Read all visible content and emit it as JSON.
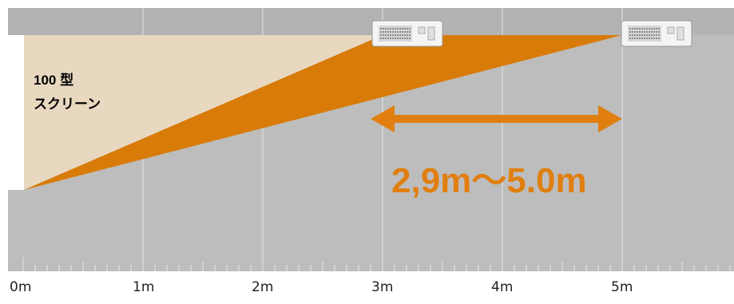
{
  "screen": {
    "size_line": "100 型",
    "word_line": "スクリーン"
  },
  "distance_range": "2,9m〜5.0m",
  "axis": {
    "ticks": [
      "0m",
      "1m",
      "2m",
      "3m",
      "4m",
      "5m"
    ]
  },
  "projectors": [
    "near-projector",
    "far-projector"
  ],
  "colors": {
    "background": "#bdbdbd",
    "ceiling_band": "#b0b0b0",
    "screen": "#e8d8c0",
    "beam": "#d97b08",
    "accent_text": "#e07f10",
    "gridline": "#e6e6e6"
  }
}
